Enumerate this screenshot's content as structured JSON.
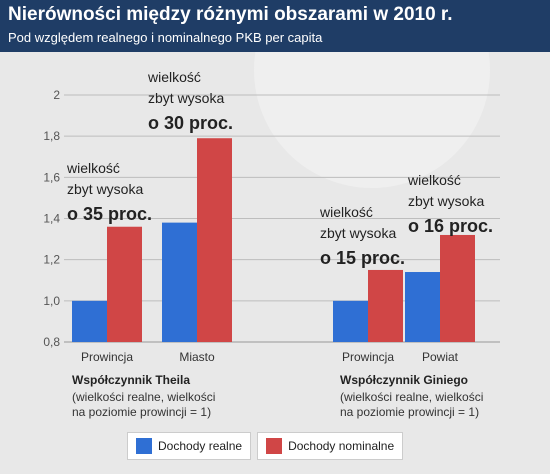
{
  "title": "Nierówności między różnymi obszarami w 2010 r.",
  "subtitle": "Pod względem realnego i nominalnego PKB per capita",
  "colors": {
    "header": "#1f3d66",
    "real": "#2f6fd4",
    "nominal": "#d04646",
    "background": "#e8e8e8"
  },
  "legend": [
    {
      "label": "Dochody realne",
      "color": "#2f6fd4"
    },
    {
      "label": "Dochody nominalne",
      "color": "#d04646"
    }
  ],
  "chart_data": {
    "type": "bar",
    "ylim": [
      0.8,
      2.0
    ],
    "yticks": [
      "0,8",
      "1,0",
      "1,2",
      "1,4",
      "1,6",
      "1,8",
      "2"
    ],
    "grid": true,
    "legend_position": "bottom",
    "categories": [
      "Prowincja",
      "Miasto",
      "Prowincja",
      "Powiat"
    ],
    "series": [
      {
        "name": "Dochody realne",
        "values": [
          1.0,
          1.38,
          1.0,
          1.14
        ]
      },
      {
        "name": "Dochody nominalne",
        "values": [
          1.36,
          1.79,
          1.15,
          1.32
        ]
      }
    ],
    "groups": [
      {
        "title": "Współczynnik Theila",
        "sub1": "(wielkości realne, wielkości",
        "sub2": "na poziomie prowincji = 1)"
      },
      {
        "title": "Współczynnik Giniego",
        "sub1": "(wielkości realne, wielkości",
        "sub2": "na poziomie prowincji = 1)"
      }
    ],
    "annotations": [
      {
        "line1": "wielkość",
        "line2": "zbyt wysoka",
        "big": "o 35 proc."
      },
      {
        "line1": "wielkość",
        "line2": "zbyt wysoka",
        "big": "o 30 proc."
      },
      {
        "line1": "wielkość",
        "line2": "zbyt wysoka",
        "big": "o 15 proc."
      },
      {
        "line1": "wielkość",
        "line2": "zbyt wysoka",
        "big": "o 16 proc."
      }
    ]
  }
}
